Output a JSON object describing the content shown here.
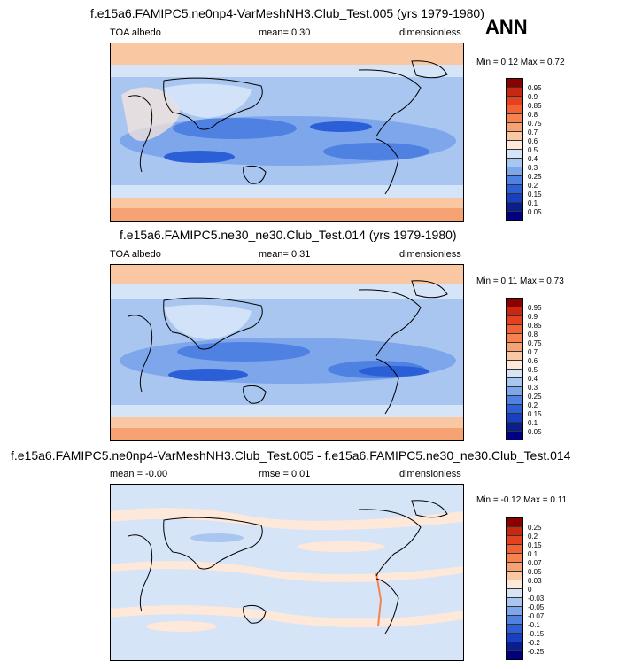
{
  "season": "ANN",
  "panels": [
    {
      "title": "f.e15a6.FAMIPC5.ne0np4-VarMeshNH3.Club_Test.005 (yrs 1979-1980)",
      "left": "TOA albedo",
      "mid": "mean=  0.30",
      "right": "dimensionless",
      "minmax": "Min =  0.12 Max =  0.72",
      "levels": [
        "0.95",
        "0.9",
        "0.85",
        "0.8",
        "0.75",
        "0.7",
        "0.6",
        "0.5",
        "0.4",
        "0.3",
        "0.25",
        "0.2",
        "0.15",
        "0.1",
        "0.05"
      ],
      "colors": [
        "#8b0000",
        "#c8280f",
        "#e4411e",
        "#f26233",
        "#f6834f",
        "#f7a272",
        "#f9c7a2",
        "#fde8da",
        "#d6e4f8",
        "#a9c6f0",
        "#7ea6ea",
        "#4f81e2",
        "#2b5fd8",
        "#1a3fc0",
        "#0a1f8e",
        "#000080"
      ]
    },
    {
      "title": "f.e15a6.FAMIPC5.ne30_ne30.Club_Test.014 (yrs 1979-1980)",
      "left": "TOA albedo",
      "mid": "mean=  0.31",
      "right": "dimensionless",
      "minmax": "Min =  0.11 Max =  0.73",
      "levels": [
        "0.95",
        "0.9",
        "0.85",
        "0.8",
        "0.75",
        "0.7",
        "0.6",
        "0.5",
        "0.4",
        "0.3",
        "0.25",
        "0.2",
        "0.15",
        "0.1",
        "0.05"
      ],
      "colors": [
        "#8b0000",
        "#c8280f",
        "#e4411e",
        "#f26233",
        "#f6834f",
        "#f7a272",
        "#f9c7a2",
        "#fde8da",
        "#d6e4f8",
        "#a9c6f0",
        "#7ea6ea",
        "#4f81e2",
        "#2b5fd8",
        "#1a3fc0",
        "#0a1f8e",
        "#000080"
      ]
    },
    {
      "title": "f.e15a6.FAMIPC5.ne0np4-VarMeshNH3.Club_Test.005 - f.e15a6.FAMIPC5.ne30_ne30.Club_Test.014",
      "left": "mean = -0.00",
      "mid": "rmse =  0.01",
      "right": "dimensionless",
      "minmax": "Min = -0.12 Max =   0.11",
      "levels": [
        "0.25",
        "0.2",
        "0.15",
        "0.1",
        "0.07",
        "0.05",
        "0.03",
        "0",
        "-0.03",
        "-0.05",
        "-0.07",
        "-0.1",
        "-0.15",
        "-0.2",
        "-0.25"
      ],
      "colors": [
        "#8b0000",
        "#c8280f",
        "#e4411e",
        "#f26233",
        "#f6834f",
        "#f7a272",
        "#f9c7a2",
        "#fde8da",
        "#d6e4f8",
        "#a9c6f0",
        "#7ea6ea",
        "#4f81e2",
        "#2b5fd8",
        "#1a3fc0",
        "#0a1f8e",
        "#000080"
      ]
    }
  ]
}
